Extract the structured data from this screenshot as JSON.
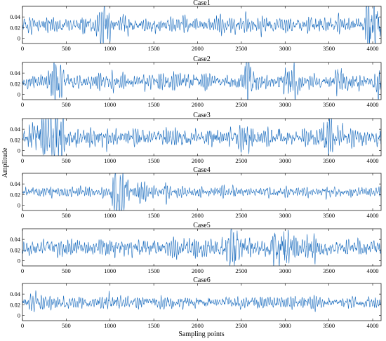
{
  "figure": {
    "ylabel": "Amplitude",
    "xlabel": "Sampling points",
    "line_color": "#1f6fbf"
  },
  "chart_data": [
    {
      "type": "line",
      "title": "Case1",
      "xlim": [
        0,
        4096
      ],
      "ylim": [
        -0.01,
        0.06
      ],
      "xticks": [
        0,
        500,
        1000,
        1500,
        2000,
        2500,
        3000,
        3500,
        4000
      ],
      "yticks": [
        0,
        0.02,
        0.04
      ],
      "n_points": 4096,
      "series": [
        {
          "baseline": 0.025,
          "noise_std": 0.006,
          "bursts": [
            {
              "center": 940,
              "width": 55,
              "amp": 0.018
            },
            {
              "center": 1180,
              "width": 40,
              "amp": 0.008
            },
            {
              "center": 3940,
              "width": 40,
              "amp": 0.012
            },
            {
              "center": 4020,
              "width": 70,
              "amp": 0.025
            }
          ]
        }
      ]
    },
    {
      "type": "line",
      "title": "Case2",
      "xlim": [
        0,
        4096
      ],
      "ylim": [
        -0.01,
        0.06
      ],
      "xticks": [
        0,
        500,
        1000,
        1500,
        2000,
        2500,
        3000,
        3500,
        4000
      ],
      "yticks": [
        0,
        0.02,
        0.04
      ],
      "n_points": 4096,
      "series": [
        {
          "baseline": 0.024,
          "noise_std": 0.006,
          "bursts": [
            {
              "center": 400,
              "width": 90,
              "amp": 0.012
            },
            {
              "center": 2590,
              "width": 60,
              "amp": 0.024
            },
            {
              "center": 3050,
              "width": 80,
              "amp": 0.012
            },
            {
              "center": 3620,
              "width": 50,
              "amp": 0.01
            },
            {
              "center": 4060,
              "width": 30,
              "amp": 0.012
            }
          ]
        }
      ]
    },
    {
      "type": "line",
      "title": "Case3",
      "xlim": [
        0,
        4096
      ],
      "ylim": [
        -0.01,
        0.06
      ],
      "xticks": [
        0,
        500,
        1000,
        1500,
        2000,
        2500,
        3000,
        3500,
        4000
      ],
      "yticks": [
        0,
        0.02,
        0.04
      ],
      "n_points": 4096,
      "series": [
        {
          "baseline": 0.024,
          "noise_std": 0.007,
          "bursts": [
            {
              "center": 400,
              "width": 90,
              "amp": 0.022
            },
            {
              "center": 200,
              "width": 120,
              "amp": 0.01
            },
            {
              "center": 2540,
              "width": 60,
              "amp": 0.01
            },
            {
              "center": 3500,
              "width": 90,
              "amp": 0.014
            }
          ]
        }
      ]
    },
    {
      "type": "line",
      "title": "Case4",
      "xlim": [
        0,
        4096
      ],
      "ylim": [
        -0.01,
        0.06
      ],
      "xticks": [
        0,
        500,
        1000,
        1500,
        2000,
        2500,
        3000,
        3500,
        4000
      ],
      "yticks": [
        0,
        0.02,
        0.04
      ],
      "n_points": 4096,
      "series": [
        {
          "baseline": 0.025,
          "noise_std": 0.004,
          "bursts": [
            {
              "center": 1110,
              "width": 75,
              "amp": 0.028
            },
            {
              "center": 1350,
              "width": 50,
              "amp": 0.01
            },
            {
              "center": 1650,
              "width": 30,
              "amp": 0.012
            }
          ]
        }
      ]
    },
    {
      "type": "line",
      "title": "Case5",
      "xlim": [
        0,
        4096
      ],
      "ylim": [
        -0.01,
        0.06
      ],
      "xticks": [
        0,
        500,
        1000,
        1500,
        2000,
        2500,
        3000,
        3500,
        4000
      ],
      "yticks": [
        0,
        0.02,
        0.04
      ],
      "n_points": 4096,
      "series": [
        {
          "baseline": 0.024,
          "noise_std": 0.007,
          "bursts": [
            {
              "center": 2400,
              "width": 110,
              "amp": 0.013
            },
            {
              "center": 2960,
              "width": 110,
              "amp": 0.016
            },
            {
              "center": 3300,
              "width": 60,
              "amp": 0.008
            }
          ]
        }
      ]
    },
    {
      "type": "line",
      "title": "Case6",
      "xlim": [
        0,
        4096
      ],
      "ylim": [
        -0.01,
        0.06
      ],
      "xticks": [
        0,
        500,
        1000,
        1500,
        2000,
        2500,
        3000,
        3500,
        4000
      ],
      "yticks": [
        0,
        0.02,
        0.04
      ],
      "n_points": 4096,
      "series": [
        {
          "baseline": 0.024,
          "noise_std": 0.005,
          "bursts": [
            {
              "center": 160,
              "width": 50,
              "amp": 0.008
            },
            {
              "center": 1000,
              "width": 60,
              "amp": 0.006
            }
          ]
        }
      ]
    }
  ]
}
